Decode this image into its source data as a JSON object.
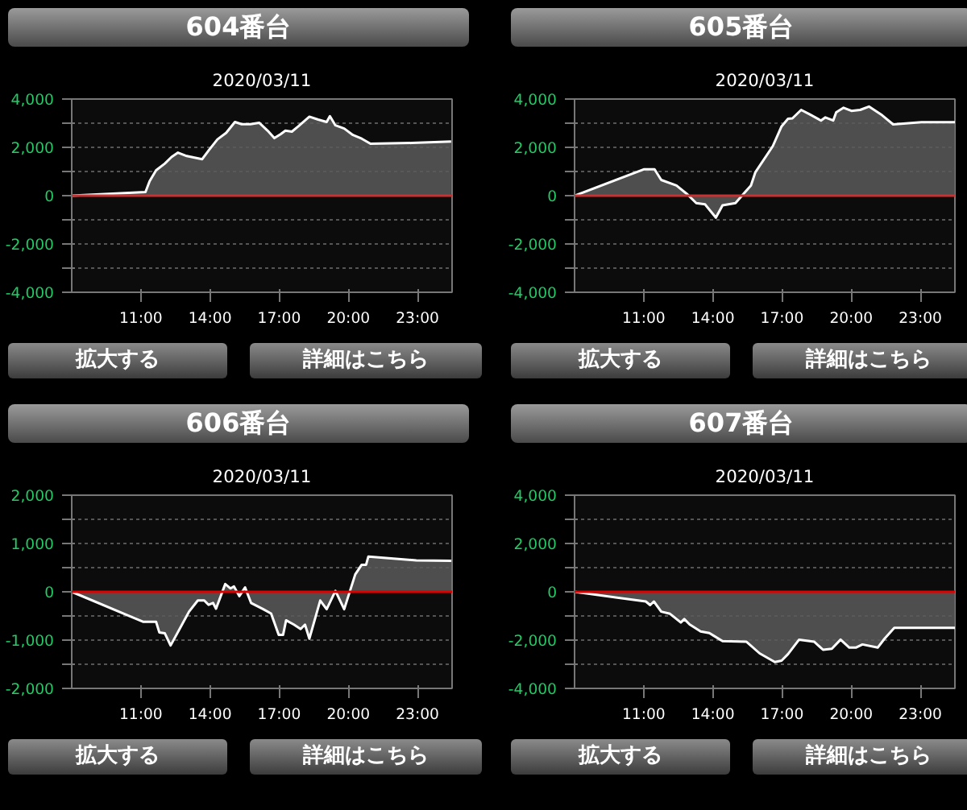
{
  "chart_data": [
    {
      "type": "area",
      "title": "604番台",
      "subtitle": "2020/03/11",
      "annotations": [
        "拡大する",
        "詳細はこちら"
      ],
      "series": [
        {
          "color": "#ffffff",
          "x": [
            8.0,
            11.2,
            11.38,
            11.66,
            12.04,
            12.33,
            12.61,
            12.99,
            13.66,
            13.94,
            14.32,
            14.7,
            15.08,
            15.37,
            15.75,
            16.13,
            16.5,
            16.79,
            17.07,
            17.27,
            17.55,
            17.83,
            18.31,
            18.69,
            19.06,
            19.2,
            19.44,
            19.82,
            20.2,
            20.58,
            20.96,
            22.76,
            24.46
          ],
          "values": [
            0,
            150,
            600,
            1050,
            1330,
            1600,
            1780,
            1640,
            1510,
            1870,
            2330,
            2600,
            3050,
            2960,
            2960,
            3020,
            2690,
            2380,
            2550,
            2690,
            2650,
            2870,
            3270,
            3150,
            3050,
            3290,
            2910,
            2780,
            2510,
            2360,
            2150,
            2180,
            2240
          ]
        }
      ],
      "xlim": [
        8,
        24.5
      ],
      "xticks": [
        {
          "value": 11,
          "label": "11:00"
        },
        {
          "value": 14,
          "label": "14:00"
        },
        {
          "value": 17,
          "label": "17:00"
        },
        {
          "value": 20,
          "label": "20:00"
        },
        {
          "value": 23,
          "label": "23:00"
        }
      ],
      "ylim": [
        -4000,
        4000
      ],
      "yticks": [
        {
          "value": -4000,
          "label": "-4,000"
        },
        {
          "value": -3000,
          "label": null
        },
        {
          "value": -2000,
          "label": "-2,000"
        },
        {
          "value": -1000,
          "label": null
        },
        0,
        {
          "value": 1000,
          "label": null
        },
        {
          "value": 2000,
          "label": "2,000"
        },
        {
          "value": 3000,
          "label": null
        },
        {
          "value": 4000,
          "label": "4,000"
        }
      ],
      "ref_lines": [
        {
          "axis": "y",
          "value": 0,
          "color": "#c83232"
        }
      ],
      "grid": "y",
      "marker": "none",
      "line_style": "solid"
    },
    {
      "type": "area",
      "title": "605番台",
      "subtitle": "2020/03/11",
      "annotations": [
        "拡大する",
        "詳細はこちら"
      ],
      "series": [
        {
          "color": "#ffffff",
          "x": [
            8.0,
            11.0,
            11.47,
            11.76,
            12.42,
            12.9,
            13.28,
            13.66,
            14.13,
            14.42,
            14.98,
            15.36,
            15.65,
            15.84,
            16.6,
            16.98,
            17.26,
            17.45,
            17.83,
            18.21,
            18.69,
            18.88,
            19.22,
            19.35,
            19.67,
            20.01,
            20.39,
            20.77,
            21.34,
            21.82,
            23.05,
            24.5
          ],
          "values": [
            0,
            1090,
            1090,
            650,
            420,
            50,
            -310,
            -360,
            -910,
            -400,
            -310,
            110,
            420,
            960,
            2050,
            2870,
            3180,
            3200,
            3550,
            3360,
            3110,
            3240,
            3110,
            3450,
            3640,
            3510,
            3550,
            3690,
            3330,
            2950,
            3040,
            3040
          ]
        }
      ],
      "xlim": [
        8,
        24.5
      ],
      "xticks": [
        {
          "value": 11,
          "label": "11:00"
        },
        {
          "value": 14,
          "label": "14:00"
        },
        {
          "value": 17,
          "label": "17:00"
        },
        {
          "value": 20,
          "label": "20:00"
        },
        {
          "value": 23,
          "label": "23:00"
        }
      ],
      "ylim": [
        -4000,
        4000
      ],
      "yticks": [
        {
          "value": -4000,
          "label": "-4,000"
        },
        {
          "value": -3000,
          "label": null
        },
        {
          "value": -2000,
          "label": "-2,000"
        },
        {
          "value": -1000,
          "label": null
        },
        0,
        {
          "value": 1000,
          "label": null
        },
        {
          "value": 2000,
          "label": "2,000"
        },
        {
          "value": 3000,
          "label": null
        },
        {
          "value": 4000,
          "label": "4,000"
        }
      ],
      "ref_lines": [
        {
          "axis": "y",
          "value": 0,
          "color": "#c83232"
        }
      ],
      "grid": "y",
      "marker": "none",
      "line_style": "solid"
    },
    {
      "type": "area",
      "title": "606番台",
      "subtitle": "2020/03/11",
      "annotations": [
        "拡大する",
        "詳細はこちら"
      ],
      "series": [
        {
          "color": "#ffffff",
          "x": [
            8.0,
            11.09,
            11.66,
            11.8,
            12.04,
            12.29,
            12.52,
            13.09,
            13.47,
            13.75,
            13.94,
            14.13,
            14.26,
            14.66,
            14.89,
            15.04,
            15.27,
            15.52,
            15.78,
            16.31,
            16.65,
            16.98,
            17.17,
            17.3,
            17.64,
            17.93,
            18.12,
            18.31,
            18.78,
            19.06,
            19.44,
            19.82,
            20.3,
            20.58,
            20.77,
            20.87,
            22.95,
            24.47
          ],
          "values": [
            0,
            -620,
            -620,
            -840,
            -860,
            -1110,
            -910,
            -410,
            -180,
            -180,
            -270,
            -230,
            -350,
            160,
            70,
            110,
            -90,
            90,
            -230,
            -360,
            -450,
            -890,
            -890,
            -590,
            -680,
            -770,
            -680,
            -970,
            -180,
            -360,
            20,
            -360,
            360,
            560,
            560,
            730,
            650,
            640
          ]
        }
      ],
      "xlim": [
        8,
        24.5
      ],
      "xticks": [
        {
          "value": 11,
          "label": "11:00"
        },
        {
          "value": 14,
          "label": "14:00"
        },
        {
          "value": 17,
          "label": "17:00"
        },
        {
          "value": 20,
          "label": "20:00"
        },
        {
          "value": 23,
          "label": "23:00"
        }
      ],
      "ylim": [
        -2000,
        2000
      ],
      "yticks": [
        {
          "value": -2000,
          "label": "-2,000"
        },
        {
          "value": -1500,
          "label": null
        },
        {
          "value": -1000,
          "label": "-1,000"
        },
        {
          "value": -500,
          "label": null
        },
        0,
        {
          "value": 500,
          "label": null
        },
        {
          "value": 1000,
          "label": "1,000"
        },
        {
          "value": 1500,
          "label": null
        },
        {
          "value": 2000,
          "label": "2,000"
        }
      ],
      "ref_lines": [
        {
          "axis": "y",
          "value": 0,
          "color": "#e00000"
        }
      ],
      "grid": "y",
      "marker": "none",
      "line_style": "solid"
    },
    {
      "type": "area",
      "title": "607番台",
      "subtitle": "2020/03/11",
      "annotations": [
        "拡大する",
        "詳細はこちら"
      ],
      "series": [
        {
          "color": "#ffffff",
          "x": [
            8.0,
            11.09,
            11.28,
            11.44,
            11.76,
            12.14,
            12.61,
            12.76,
            12.99,
            13.47,
            13.85,
            14.04,
            14.42,
            15.46,
            16.03,
            16.69,
            16.98,
            17.26,
            17.74,
            18.4,
            18.78,
            19.16,
            19.54,
            19.92,
            20.2,
            20.49,
            21.15,
            21.44,
            21.87,
            24.5
          ],
          "values": [
            0,
            -400,
            -550,
            -400,
            -820,
            -910,
            -1270,
            -1130,
            -1350,
            -1640,
            -1710,
            -1820,
            -2040,
            -2070,
            -2550,
            -2910,
            -2850,
            -2580,
            -1980,
            -2070,
            -2400,
            -2360,
            -1980,
            -2310,
            -2310,
            -2180,
            -2310,
            -1950,
            -1490,
            -1490
          ]
        }
      ],
      "xlim": [
        8,
        24.5
      ],
      "xticks": [
        {
          "value": 11,
          "label": "11:00"
        },
        {
          "value": 14,
          "label": "14:00"
        },
        {
          "value": 17,
          "label": "17:00"
        },
        {
          "value": 20,
          "label": "20:00"
        },
        {
          "value": 23,
          "label": "23:00"
        }
      ],
      "ylim": [
        -4000,
        4000
      ],
      "yticks": [
        {
          "value": -4000,
          "label": "-4,000"
        },
        {
          "value": -3000,
          "label": null
        },
        {
          "value": -2000,
          "label": "-2,000"
        },
        {
          "value": -1000,
          "label": null
        },
        0,
        {
          "value": 1000,
          "label": null
        },
        {
          "value": 2000,
          "label": "2,000"
        },
        {
          "value": 3000,
          "label": null
        },
        {
          "value": 4000,
          "label": "4,000"
        }
      ],
      "ref_lines": [
        {
          "axis": "y",
          "value": 0,
          "color": "#e00000"
        }
      ],
      "grid": "y",
      "marker": "none",
      "line_style": "solid"
    }
  ]
}
